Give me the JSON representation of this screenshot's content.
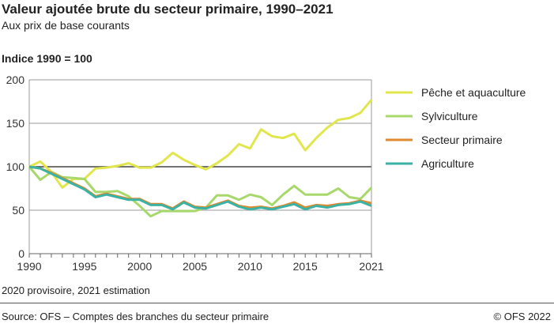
{
  "header": {
    "title": "Valeur ajoutée brute du secteur primaire, 1990–2021",
    "subtitle": "Aux prix de base courants"
  },
  "footer": {
    "note": "2020 provisoire, 2021 estimation",
    "source": "Source: OFS – Comptes des branches du secteur primaire",
    "copyright": "© OFS 2022"
  },
  "chart_data": {
    "type": "line",
    "ylabel": "Indice 1990 = 100",
    "xlim": [
      1990,
      2021
    ],
    "ylim": [
      0,
      200
    ],
    "yticks": [
      0,
      50,
      100,
      150,
      200
    ],
    "xticks": [
      1990,
      1995,
      2000,
      2005,
      2010,
      2015,
      2021
    ],
    "xtick_labels": [
      "1990",
      "1995",
      "2000",
      "2005",
      "2010",
      "2015",
      "2021"
    ],
    "ytick_labels": [
      "0",
      "50",
      "100",
      "150",
      "200"
    ],
    "grid": true,
    "legend_placement": "right",
    "x": [
      1990,
      1991,
      1992,
      1993,
      1994,
      1995,
      1996,
      1997,
      1998,
      1999,
      2000,
      2001,
      2002,
      2003,
      2004,
      2005,
      2006,
      2007,
      2008,
      2009,
      2010,
      2011,
      2012,
      2013,
      2014,
      2015,
      2016,
      2017,
      2018,
      2019,
      2020,
      2021
    ],
    "series": [
      {
        "name": "Pêche et aquaculture",
        "color": "#e1e64c",
        "values": [
          100,
          106,
          94,
          76,
          86,
          86,
          98,
          99,
          101,
          104,
          99,
          99,
          105,
          116,
          108,
          102,
          97,
          104,
          113,
          126,
          121,
          143,
          135,
          133,
          138,
          119,
          133,
          145,
          154,
          156,
          162,
          177
        ]
      },
      {
        "name": "Sylviculture",
        "color": "#a8d86c",
        "values": [
          100,
          85,
          94,
          88,
          87,
          86,
          71,
          71,
          72,
          66,
          55,
          43,
          49,
          49,
          49,
          49,
          53,
          67,
          67,
          62,
          68,
          65,
          56,
          68,
          78,
          68,
          68,
          68,
          75,
          65,
          63,
          76
        ]
      },
      {
        "name": "Secteur primaire",
        "color": "#e0892e",
        "values": [
          100,
          98,
          93,
          87,
          81,
          75,
          66,
          69,
          66,
          63,
          63,
          57,
          57,
          52,
          60,
          54,
          53,
          57,
          61,
          55,
          53,
          54,
          52,
          55,
          59,
          53,
          56,
          55,
          57,
          58,
          61,
          58
        ]
      },
      {
        "name": "Agriculture",
        "color": "#3bb3a4",
        "values": [
          100,
          98,
          92,
          86,
          80,
          74,
          65,
          68,
          65,
          62,
          62,
          56,
          56,
          51,
          59,
          53,
          52,
          56,
          60,
          54,
          51,
          53,
          51,
          54,
          57,
          51,
          55,
          53,
          56,
          57,
          60,
          55
        ]
      }
    ]
  }
}
